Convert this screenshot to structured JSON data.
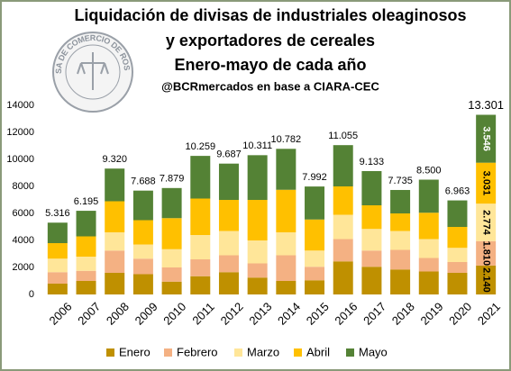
{
  "chart_data": {
    "type": "stacked_bar",
    "title": [
      "Liquidación de divisas de industriales oleaginosos",
      "y exportadores de cereales",
      "Enero-mayo de cada año"
    ],
    "subtitle": "@BCRmercados en base a CIARA-CEC",
    "logo": "BOLSA DE COMERCIO DE ROSARIO",
    "categories": [
      "2006",
      "2007",
      "2008",
      "2009",
      "2010",
      "2011",
      "2012",
      "2013",
      "2014",
      "2015",
      "2016",
      "2017",
      "2018",
      "2019",
      "2020",
      "2021"
    ],
    "series": [
      {
        "name": "Enero",
        "color": "#bf9000",
        "values": [
          800,
          1000,
          1600,
          1500,
          950,
          1350,
          1650,
          1250,
          1000,
          1050,
          2450,
          2050,
          1850,
          1700,
          1600,
          2140
        ],
        "value_labels": [
          null,
          null,
          null,
          null,
          null,
          null,
          null,
          null,
          null,
          null,
          null,
          null,
          null,
          null,
          null,
          "2.140"
        ]
      },
      {
        "name": "Febrero",
        "color": "#f4b183",
        "values": [
          850,
          750,
          1650,
          1150,
          1050,
          1250,
          1250,
          1050,
          1900,
          1000,
          1650,
          1200,
          1450,
          1000,
          800,
          1810
        ],
        "value_labels": [
          null,
          null,
          null,
          null,
          null,
          null,
          null,
          null,
          null,
          null,
          null,
          null,
          null,
          null,
          null,
          "1.810"
        ]
      },
      {
        "name": "Marzo",
        "color": "#ffe699",
        "values": [
          1000,
          1050,
          1350,
          1050,
          1350,
          1800,
          1800,
          1700,
          1700,
          1200,
          1800,
          1600,
          1400,
          1400,
          1050,
          2774
        ],
        "value_labels": [
          null,
          null,
          null,
          null,
          null,
          null,
          null,
          null,
          null,
          null,
          null,
          null,
          null,
          null,
          null,
          "2.774"
        ]
      },
      {
        "name": "Abril",
        "color": "#ffc000",
        "values": [
          1150,
          1500,
          2300,
          1800,
          2300,
          2700,
          2300,
          3000,
          3150,
          2300,
          2100,
          1750,
          1300,
          1950,
          1550,
          3031
        ],
        "value_labels": [
          null,
          null,
          null,
          null,
          null,
          null,
          null,
          null,
          null,
          null,
          null,
          null,
          null,
          null,
          null,
          "3.031"
        ]
      },
      {
        "name": "Mayo",
        "color": "#548235",
        "values": [
          1516,
          1895,
          2420,
          2188,
          2229,
          3159,
          2687,
          3311,
          3032,
          2442,
          3055,
          2533,
          1735,
          2450,
          1963,
          3546
        ],
        "value_labels": [
          null,
          null,
          null,
          null,
          null,
          null,
          null,
          null,
          null,
          null,
          null,
          null,
          null,
          null,
          null,
          "3.546"
        ]
      }
    ],
    "totals": {
      "values": [
        5316,
        6195,
        9320,
        7688,
        7879,
        10259,
        9687,
        10311,
        10782,
        7992,
        11055,
        9133,
        7735,
        8500,
        6963,
        13301
      ],
      "value_labels": [
        "5.316",
        "6.195",
        "9.320",
        "7.688",
        "7.879",
        "10.259",
        "9.687",
        "10.311",
        "10.782",
        "7.992",
        "11.055",
        "9.133",
        "7.735",
        "8.500",
        "6.963",
        "13.301"
      ]
    },
    "ylim": [
      0,
      14000
    ],
    "yticks": [
      0,
      2000,
      4000,
      6000,
      8000,
      10000,
      12000,
      14000
    ],
    "grid": false,
    "legend": "bottom"
  }
}
